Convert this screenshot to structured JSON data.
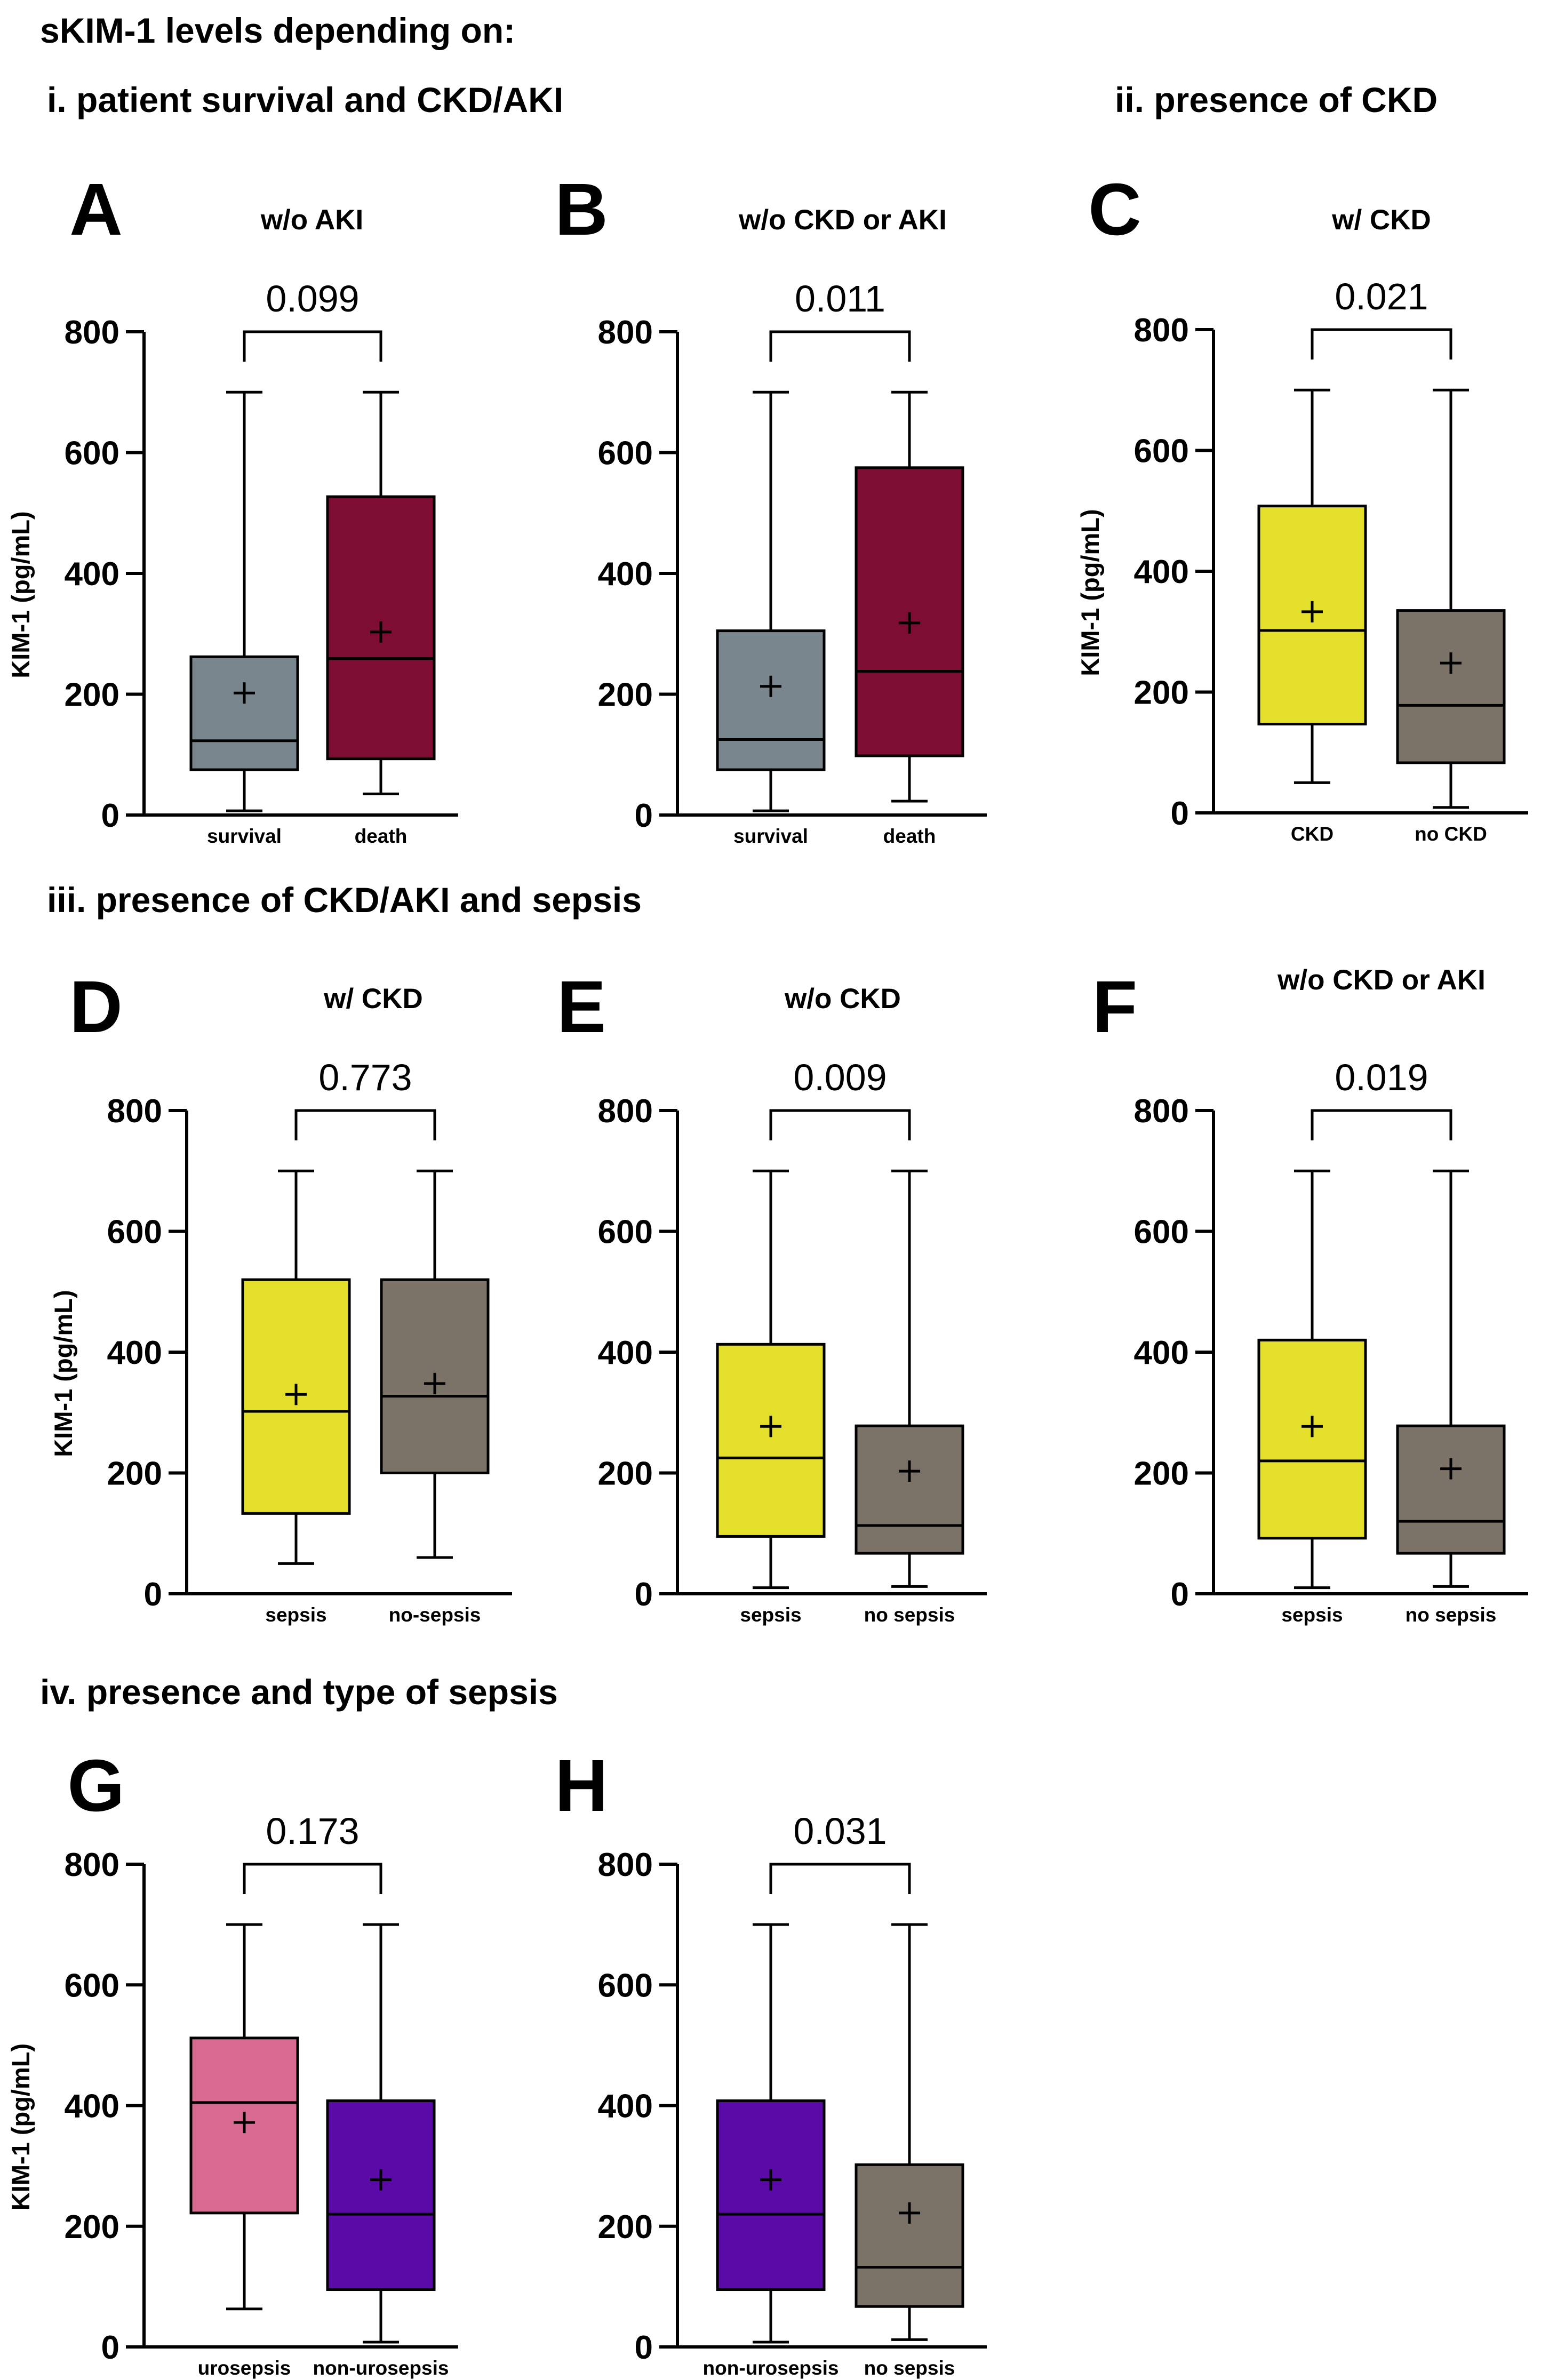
{
  "figure_title": "sKIM-1 levels depending on:",
  "sections": {
    "i": "i. patient survival and CKD/AKI",
    "ii": "ii. presence of CKD",
    "iii": "iii. presence of CKD/AKI and sepsis",
    "iv": "iv. presence and type of sepsis"
  },
  "colors": {
    "grey_blue": "#7a868d",
    "maroon": "#7d0d32",
    "yellow": "#e4df2a",
    "dark_grey": "#7b7367",
    "pink": "#d96b93",
    "purple": "#5a0aa7"
  },
  "chart_data": [
    {
      "type": "box",
      "panel": "A",
      "title": "w/o AKI",
      "ylabel": "KIM-1 (pg/mL)",
      "ylim": [
        0,
        800
      ],
      "yticks": [
        0,
        200,
        400,
        600,
        800
      ],
      "p_value": "0.099",
      "categories": [
        "survival",
        "death"
      ],
      "boxes": [
        {
          "label": "survival",
          "min": 7,
          "q1": 75,
          "median": 123,
          "q3": 262,
          "max": 700,
          "mean": 202,
          "color": "#7a868d"
        },
        {
          "label": "death",
          "min": 35,
          "q1": 93,
          "median": 259,
          "q3": 527,
          "max": 700,
          "mean": 303,
          "color": "#7d0d32"
        }
      ]
    },
    {
      "type": "box",
      "panel": "B",
      "title": "w/o CKD or AKI",
      "ylabel": "",
      "ylim": [
        0,
        800
      ],
      "yticks": [
        0,
        200,
        400,
        600,
        800
      ],
      "p_value": "0.011",
      "categories": [
        "survival",
        "death"
      ],
      "boxes": [
        {
          "label": "survival",
          "min": 7,
          "q1": 75,
          "median": 125,
          "q3": 305,
          "max": 700,
          "mean": 213,
          "color": "#7a868d"
        },
        {
          "label": "death",
          "min": 23,
          "q1": 98,
          "median": 238,
          "q3": 575,
          "max": 700,
          "mean": 318,
          "color": "#7d0d32"
        }
      ]
    },
    {
      "type": "box",
      "panel": "C",
      "title": "w/ CKD",
      "ylabel": "KIM-1 (pg/mL)",
      "ylim": [
        0,
        800
      ],
      "yticks": [
        0,
        200,
        400,
        600,
        800
      ],
      "p_value": "0.021",
      "categories": [
        "CKD",
        "no CKD"
      ],
      "boxes": [
        {
          "label": "CKD",
          "min": 50,
          "q1": 147,
          "median": 302,
          "q3": 508,
          "max": 700,
          "mean": 333,
          "color": "#e4df2a"
        },
        {
          "label": "no CKD",
          "min": 9,
          "q1": 83,
          "median": 178,
          "q3": 335,
          "max": 700,
          "mean": 248,
          "color": "#7b7367"
        }
      ]
    },
    {
      "type": "box",
      "panel": "D",
      "title": "w/ CKD",
      "ylabel": "KIM-1 (pg/mL)",
      "ylim": [
        0,
        800
      ],
      "yticks": [
        0,
        200,
        400,
        600,
        800
      ],
      "p_value": "0.773",
      "categories": [
        "sepsis",
        "no-sepsis"
      ],
      "boxes": [
        {
          "label": "sepsis",
          "min": 50,
          "q1": 133,
          "median": 302,
          "q3": 520,
          "max": 700,
          "mean": 330,
          "color": "#e4df2a"
        },
        {
          "label": "no-sepsis",
          "min": 60,
          "q1": 200,
          "median": 327,
          "q3": 520,
          "max": 700,
          "mean": 348,
          "color": "#7b7367"
        }
      ]
    },
    {
      "type": "box",
      "panel": "E",
      "title": "w/o CKD",
      "ylabel": "",
      "ylim": [
        0,
        800
      ],
      "yticks": [
        0,
        200,
        400,
        600,
        800
      ],
      "p_value": "0.009",
      "categories": [
        "sepsis",
        "no sepsis"
      ],
      "boxes": [
        {
          "label": "sepsis",
          "min": 10,
          "q1": 95,
          "median": 225,
          "q3": 413,
          "max": 700,
          "mean": 277,
          "color": "#e4df2a"
        },
        {
          "label": "no sepsis",
          "min": 12,
          "q1": 67,
          "median": 113,
          "q3": 278,
          "max": 700,
          "mean": 203,
          "color": "#7b7367"
        }
      ]
    },
    {
      "type": "box",
      "panel": "F",
      "title": "w/o CKD or AKI",
      "ylabel": "",
      "ylim": [
        0,
        800
      ],
      "yticks": [
        0,
        200,
        400,
        600,
        800
      ],
      "p_value": "0.019",
      "categories": [
        "sepsis",
        "no sepsis"
      ],
      "boxes": [
        {
          "label": "sepsis",
          "min": 10,
          "q1": 92,
          "median": 220,
          "q3": 420,
          "max": 700,
          "mean": 277,
          "color": "#e4df2a"
        },
        {
          "label": "no sepsis",
          "min": 12,
          "q1": 67,
          "median": 120,
          "q3": 278,
          "max": 700,
          "mean": 207,
          "color": "#7b7367"
        }
      ]
    },
    {
      "type": "box",
      "panel": "G",
      "title": "",
      "ylabel": "KIM-1 (pg/mL)",
      "ylim": [
        0,
        800
      ],
      "yticks": [
        0,
        200,
        400,
        600,
        800
      ],
      "p_value": "0.173",
      "categories": [
        "urosepsis",
        "non-urosepsis"
      ],
      "boxes": [
        {
          "label": "urosepsis",
          "min": 63,
          "q1": 222,
          "median": 405,
          "q3": 512,
          "max": 700,
          "mean": 372,
          "color": "#d96b93"
        },
        {
          "label": "non-urosepsis",
          "min": 8,
          "q1": 95,
          "median": 220,
          "q3": 408,
          "max": 700,
          "mean": 277,
          "color": "#5a0aa7"
        }
      ]
    },
    {
      "type": "box",
      "panel": "H",
      "title": "",
      "ylabel": "",
      "ylim": [
        0,
        800
      ],
      "yticks": [
        0,
        200,
        400,
        600,
        800
      ],
      "p_value": "0.031",
      "categories": [
        "non-urosepsis",
        "no sepsis"
      ],
      "boxes": [
        {
          "label": "non-urosepsis",
          "min": 8,
          "q1": 95,
          "median": 220,
          "q3": 408,
          "max": 700,
          "mean": 277,
          "color": "#5a0aa7"
        },
        {
          "label": "no sepsis",
          "min": 12,
          "q1": 67,
          "median": 132,
          "q3": 302,
          "max": 700,
          "mean": 222,
          "color": "#7b7367"
        }
      ]
    }
  ]
}
